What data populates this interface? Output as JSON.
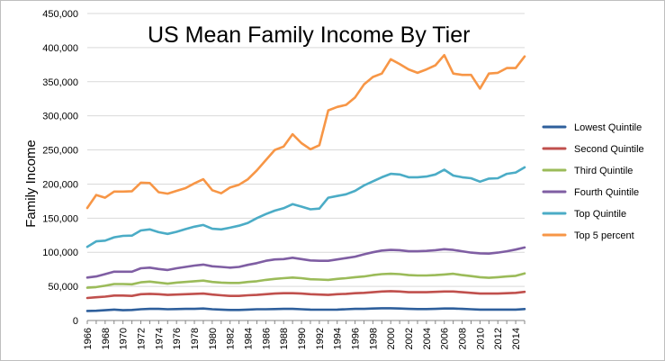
{
  "chart_data": {
    "type": "line",
    "title": "US Mean Family Income By Tier",
    "ylabel": "Family Income",
    "xlabel": "",
    "ylim": [
      0,
      450000
    ],
    "yticks": [
      0,
      50000,
      100000,
      150000,
      200000,
      250000,
      300000,
      350000,
      400000,
      450000
    ],
    "ytick_labels": [
      "0",
      "50,000",
      "100,000",
      "150,000",
      "200,000",
      "250,000",
      "300,000",
      "350,000",
      "400,000",
      "450,000"
    ],
    "x": [
      1966,
      1967,
      1968,
      1969,
      1970,
      1971,
      1972,
      1973,
      1974,
      1975,
      1976,
      1977,
      1978,
      1979,
      1980,
      1981,
      1982,
      1983,
      1984,
      1985,
      1986,
      1987,
      1988,
      1989,
      1990,
      1991,
      1992,
      1993,
      1994,
      1995,
      1996,
      1997,
      1998,
      1999,
      2000,
      2001,
      2002,
      2003,
      2004,
      2005,
      2006,
      2007,
      2008,
      2009,
      2010,
      2011,
      2012,
      2013,
      2014,
      2015
    ],
    "xtick_labels": [
      "1966",
      "1968",
      "1970",
      "1972",
      "1974",
      "1976",
      "1978",
      "1980",
      "1982",
      "1984",
      "1986",
      "1988",
      "1990",
      "1992",
      "1994",
      "1996",
      "1998",
      "2000",
      "2002",
      "2004",
      "2006",
      "2008",
      "2010",
      "2012",
      "2014"
    ],
    "grid": true,
    "legend_position": "right",
    "series": [
      {
        "name": "Lowest Quintile",
        "color": "#2e5f9c",
        "values": [
          14000,
          14200,
          15000,
          16000,
          15000,
          15500,
          16500,
          17000,
          17000,
          16500,
          16800,
          17000,
          17000,
          17500,
          16500,
          16000,
          15500,
          15500,
          16000,
          16500,
          16500,
          16800,
          17000,
          17000,
          16500,
          16000,
          15800,
          15800,
          16000,
          16500,
          17000,
          17000,
          17500,
          18000,
          18000,
          17500,
          17000,
          16800,
          16800,
          17000,
          17500,
          17500,
          17000,
          16500,
          16000,
          16000,
          16000,
          16000,
          16000,
          16800
        ]
      },
      {
        "name": "Second Quintile",
        "color": "#c0504d",
        "values": [
          33000,
          34000,
          35000,
          36500,
          36500,
          36000,
          38500,
          39000,
          38500,
          37500,
          38000,
          38500,
          39000,
          39500,
          38000,
          37000,
          36000,
          36000,
          37000,
          37500,
          38500,
          39500,
          40000,
          40000,
          39500,
          38500,
          38000,
          37500,
          38500,
          39000,
          40000,
          40500,
          41500,
          42500,
          43000,
          42500,
          41500,
          41500,
          41500,
          42000,
          42500,
          42500,
          41500,
          40500,
          39500,
          39500,
          39500,
          40000,
          40500,
          42000
        ]
      },
      {
        "name": "Third Quintile",
        "color": "#9bbb59",
        "values": [
          48000,
          49000,
          51000,
          53500,
          53500,
          53000,
          56000,
          57000,
          55500,
          54000,
          55500,
          56500,
          57500,
          58500,
          56500,
          55500,
          55000,
          55000,
          56500,
          57500,
          59500,
          61000,
          62000,
          63000,
          62000,
          60500,
          60000,
          59500,
          61000,
          62000,
          63500,
          64500,
          66500,
          68000,
          68500,
          68000,
          66500,
          66000,
          66000,
          66500,
          67500,
          68500,
          66500,
          65000,
          63500,
          62500,
          63500,
          64500,
          65500,
          69000
        ]
      },
      {
        "name": "Fourth Quintile",
        "color": "#7f5ea3",
        "values": [
          63000,
          64500,
          68000,
          71500,
          71500,
          71500,
          76500,
          77500,
          75500,
          74000,
          76500,
          78500,
          80500,
          82000,
          79500,
          78500,
          77500,
          78500,
          81500,
          84000,
          87500,
          89500,
          90000,
          92000,
          90000,
          88000,
          87500,
          87500,
          89500,
          91500,
          93500,
          97000,
          100000,
          102500,
          103500,
          103000,
          101500,
          101500,
          102000,
          103000,
          104500,
          103500,
          101500,
          99500,
          98500,
          98000,
          99500,
          101500,
          104000,
          107000
        ]
      },
      {
        "name": "Top Quintile",
        "color": "#4bacc6",
        "values": [
          108000,
          116000,
          117000,
          122000,
          124000,
          124500,
          132000,
          133500,
          129500,
          127000,
          130000,
          134000,
          137500,
          140000,
          134500,
          133500,
          136000,
          139000,
          143000,
          150000,
          156000,
          161000,
          164500,
          170500,
          167000,
          163000,
          164000,
          180000,
          182500,
          185000,
          190000,
          198000,
          204000,
          210000,
          215000,
          214000,
          210000,
          210000,
          211000,
          214000,
          221000,
          212500,
          210000,
          208500,
          203500,
          208000,
          208500,
          215000,
          217000,
          224500
        ]
      },
      {
        "name": "Top 5 percent",
        "color": "#f79646",
        "values": [
          165000,
          184000,
          180000,
          189000,
          189000,
          189500,
          202000,
          201500,
          188000,
          186000,
          190000,
          194000,
          201000,
          207000,
          191000,
          186500,
          195000,
          199000,
          207000,
          220000,
          235000,
          250000,
          255000,
          273000,
          260000,
          251000,
          257000,
          308000,
          313000,
          316000,
          327000,
          346000,
          357000,
          362000,
          383000,
          376000,
          368000,
          363000,
          368000,
          374000,
          389000,
          362000,
          360000,
          360000,
          340000,
          362000,
          363000,
          370000,
          370000,
          387000
        ]
      }
    ]
  }
}
